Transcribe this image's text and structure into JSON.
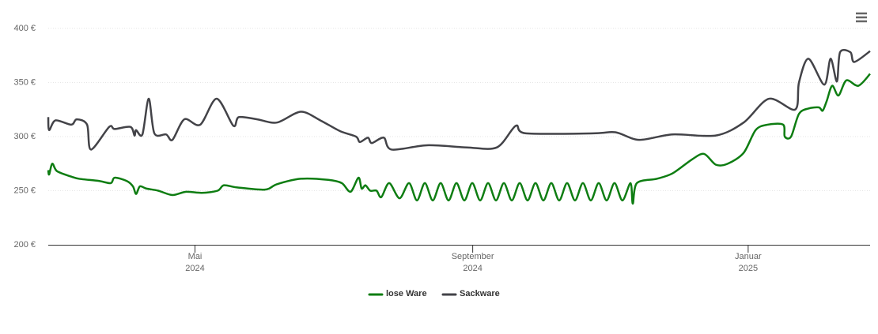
{
  "chart_data": {
    "type": "line",
    "xlim": [
      56,
      420
    ],
    "xticks": [
      {
        "value": 121,
        "label": "Mai\n2024"
      },
      {
        "value": 244,
        "label": "September\n2024"
      },
      {
        "value": 366,
        "label": "Januar\n2025"
      }
    ],
    "ylim": [
      200,
      400
    ],
    "yticks": [
      {
        "value": 200,
        "label": "200 €"
      },
      {
        "value": 250,
        "label": "250 €"
      },
      {
        "value": 300,
        "label": "300 €"
      },
      {
        "value": 350,
        "label": "350 €"
      },
      {
        "value": 400,
        "label": "400 €"
      }
    ],
    "grid": true,
    "legend": "bottom",
    "series": [
      {
        "name": "lose Ware",
        "color": "#0e7d12",
        "x": [
          56,
          56.4,
          57.8,
          59.9,
          66.2,
          69.7,
          78.4,
          83.7,
          85.4,
          90.7,
          93.5,
          94.9,
          96.6,
          99.4,
          104.7,
          111,
          117,
          124,
          131,
          133.8,
          139.7,
          152,
          157.3,
          167.8,
          180,
          186,
          189.9,
          193.4,
          194.8,
          196.5,
          198.6,
          201.4,
          203.5,
          207,
          211.6,
          215.8,
          219.3,
          222.8,
          226.3,
          229.8,
          233.3,
          236.8,
          240.3,
          243.8,
          247.3,
          250.8,
          254.3,
          257.8,
          261.3,
          264.8,
          268.3,
          271.8,
          275.3,
          278.8,
          282.3,
          285.8,
          289.3,
          292.8,
          296.3,
          299.8,
          303.3,
          306.8,
          310.3,
          313.9,
          314.9,
          316.7,
          325.5,
          332.5,
          341.2,
          346.5,
          351.7,
          357,
          364,
          369.3,
          374.5,
          381.5,
          382.2,
          385,
          388.5,
          392.7,
          397.3,
          399,
          400.8,
          403.2,
          406,
          409.5,
          414.8,
          420
        ],
        "values": [
          269,
          265,
          275,
          268,
          263,
          261,
          259,
          257,
          262,
          259,
          254,
          247,
          254,
          252,
          250,
          246,
          249,
          248,
          250,
          255,
          253,
          251,
          256,
          261,
          260,
          257,
          249,
          262,
          252,
          255,
          250,
          250,
          244,
          257,
          243,
          257,
          241,
          257,
          241,
          257,
          241,
          257,
          241,
          257,
          241,
          257,
          241,
          257,
          241,
          257,
          241,
          257,
          241,
          257,
          241,
          257,
          241,
          257,
          241,
          257,
          241,
          257,
          241,
          257,
          238,
          257,
          261,
          266,
          279,
          284,
          274,
          275,
          285,
          306,
          311,
          311,
          300,
          300,
          321,
          326,
          327,
          324,
          333,
          347,
          338,
          352,
          347,
          358
        ]
      },
      {
        "name": "Sackware",
        "color": "#434348",
        "x": [
          56,
          56.4,
          59.2,
          66.2,
          68.6,
          73.2,
          74.9,
          83,
          85.4,
          92.4,
          94.2,
          94.9,
          97.7,
          100.5,
          103,
          108.2,
          111,
          116.3,
          123.3,
          130.6,
          138,
          140.4,
          148.5,
          157.3,
          167.8,
          176.5,
          185.3,
          192.3,
          194,
          197.6,
          199.3,
          204.6,
          208.1,
          223.8,
          241.4,
          254.7,
          263.1,
          267.6,
          297.4,
          307.2,
          317.7,
          332.5,
          351.7,
          364,
          375.2,
          386.8,
          388.5,
          392.7,
          399.7,
          402.5,
          405.3,
          406.7,
          411.3,
          413,
          420
        ],
        "values": [
          318,
          306,
          315,
          311,
          316,
          311,
          288,
          309,
          307,
          309,
          301,
          306,
          302,
          335,
          303,
          302,
          297,
          316,
          311,
          335,
          310,
          318,
          316,
          313,
          323,
          315,
          305,
          300,
          295,
          299,
          294,
          299,
          288,
          292,
          290,
          290,
          310,
          303,
          303,
          304,
          297,
          302,
          301,
          313,
          335,
          325,
          350,
          372,
          348,
          372,
          351,
          378,
          378,
          369,
          379
        ]
      }
    ]
  }
}
